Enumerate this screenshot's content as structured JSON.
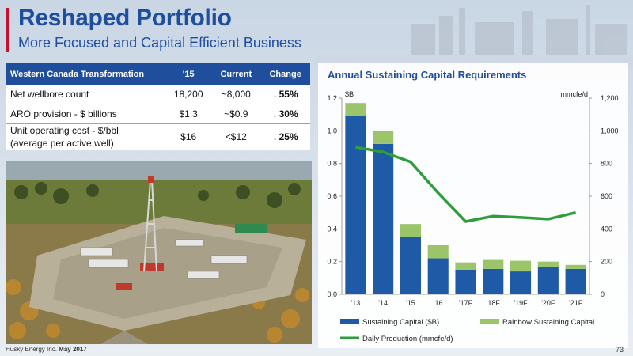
{
  "header": {
    "title": "Reshaped Portfolio",
    "subtitle": "More Focused and Capital Efficient Business"
  },
  "table": {
    "headers": [
      "Western Canada Transformation",
      "'15",
      "Current",
      "Change"
    ],
    "rows": [
      {
        "label": "Net wellbore count",
        "y15": "18,200",
        "current": "~8,000",
        "change": "55%"
      },
      {
        "label": "ARO provision - $ billions",
        "y15": "$1.3",
        "current": "~$0.9",
        "change": "30%"
      },
      {
        "label": "Unit operating cost - $/bbl\n(average per active well)",
        "y15": "$16",
        "current": "<$12",
        "change": "25%"
      }
    ],
    "header_color": "#1f4e9c",
    "arrow_color": "#2e9e3c"
  },
  "footer": {
    "company": "Husky Energy Inc.",
    "date": "May 2017",
    "page_number": "73"
  },
  "chart_data": {
    "type": "bar",
    "title": "Annual Sustaining Capital Requirements",
    "left_axis_unit": "$B",
    "right_axis_unit": "mmcfe/d",
    "categories": [
      "'13",
      "'14",
      "'15",
      "'16",
      "'17F",
      "'18F",
      "'19F",
      "'20F",
      "'21F"
    ],
    "stacked": true,
    "series": [
      {
        "name": "Sustaining Capital ($B)",
        "type": "bar",
        "axis": "left",
        "color": "#1f5aa6",
        "values": [
          1.09,
          0.92,
          0.35,
          0.22,
          0.15,
          0.155,
          0.14,
          0.165,
          0.155
        ]
      },
      {
        "name": "Rainbow Sustaining Capital",
        "type": "bar",
        "axis": "left",
        "color": "#9cc46a",
        "values": [
          0.08,
          0.08,
          0.08,
          0.08,
          0.045,
          0.055,
          0.065,
          0.035,
          0.025
        ]
      },
      {
        "name": "Daily Production (mmcfe/d)",
        "type": "line",
        "axis": "right",
        "color": "#2e9e3c",
        "values": [
          900,
          870,
          810,
          620,
          445,
          478,
          470,
          460,
          500
        ]
      }
    ],
    "ylim_left": [
      0,
      1.2
    ],
    "ylim_right": [
      0,
      1200
    ],
    "yticks_left": [
      "0.0",
      "0.2",
      "0.4",
      "0.6",
      "0.8",
      "1.0",
      "1.2"
    ],
    "yticks_right": [
      "0",
      "200",
      "400",
      "600",
      "800",
      "1,000",
      "1,200"
    ],
    "legend_position": "bottom",
    "grid": false
  }
}
